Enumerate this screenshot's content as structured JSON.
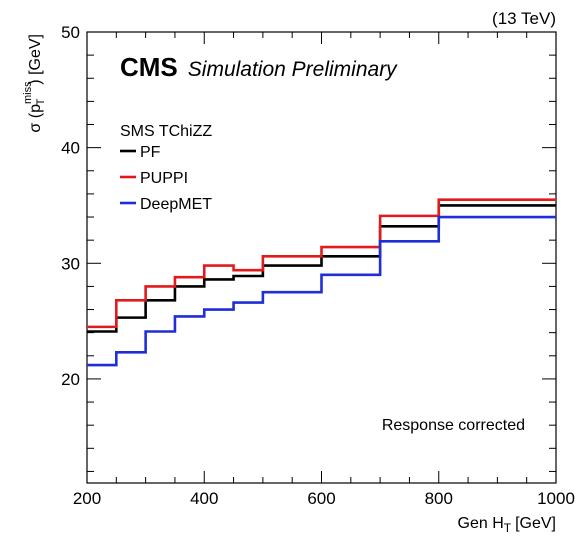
{
  "chart_data": {
    "type": "line",
    "step": true,
    "energy_label": "(13 TeV)",
    "experiment": "CMS",
    "experiment_suffix": "Simulation Preliminary",
    "legend_header": "SMS TChiZZ",
    "annotation": "Response corrected",
    "xlabel": {
      "text": "Gen H",
      "sub": "T",
      "unit": "[GeV]"
    },
    "ylabel": {
      "prefix": "σ (p",
      "sup": "miss",
      "sub": "T",
      "suffix": ") [GeV]"
    },
    "xlim": [
      200,
      1000
    ],
    "ylim": [
      11,
      50
    ],
    "x_ticks": [
      200,
      400,
      600,
      800,
      1000
    ],
    "y_ticks": [
      20,
      30,
      40,
      50
    ],
    "bin_edges": [
      200,
      250,
      300,
      350,
      400,
      450,
      500,
      600,
      700,
      800,
      1000
    ],
    "series": [
      {
        "name": "PF",
        "color": "#000000",
        "values": [
          24.1,
          25.3,
          26.8,
          28.0,
          28.6,
          28.9,
          29.8,
          30.6,
          33.2,
          35.0
        ]
      },
      {
        "name": "PUPPI",
        "color": "#e31a1c",
        "values": [
          24.5,
          26.8,
          28.0,
          28.8,
          29.8,
          29.4,
          30.6,
          31.4,
          34.1,
          35.5
        ]
      },
      {
        "name": "DeepMET",
        "color": "#1f2ed6",
        "values": [
          21.2,
          22.3,
          24.1,
          25.4,
          26.0,
          26.6,
          27.5,
          29.0,
          31.9,
          34.0
        ]
      }
    ]
  }
}
